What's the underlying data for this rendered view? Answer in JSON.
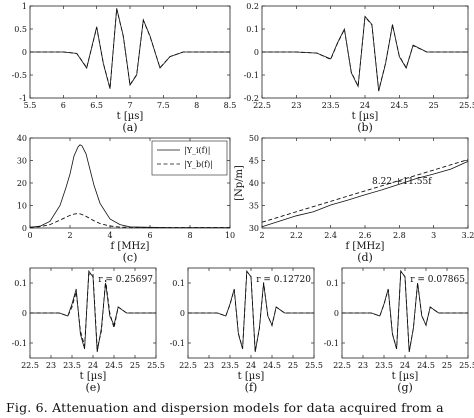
{
  "caption": "Fig. 6. Attenuation and dispersion models for data acquired from a",
  "chart_data": [
    {
      "id": "a",
      "type": "line",
      "panel_label": "(a)",
      "xlabel": "t [µs]",
      "ylabel": "",
      "xlim": [
        5.5,
        8.5
      ],
      "ylim": [
        -1,
        1
      ],
      "xticks": [
        5.5,
        6,
        6.5,
        7,
        7.5,
        8,
        8.5
      ],
      "yticks": [
        -1,
        -0.5,
        0,
        0.5,
        1
      ],
      "series": [
        {
          "style": "solid",
          "x": [
            5.5,
            6.0,
            6.2,
            6.35,
            6.5,
            6.6,
            6.7,
            6.8,
            6.9,
            7.0,
            7.1,
            7.2,
            7.3,
            7.45,
            7.6,
            7.8,
            8.0,
            8.5
          ],
          "y": [
            0,
            0,
            -0.03,
            -0.35,
            0.55,
            -0.25,
            -0.8,
            0.95,
            0.35,
            -0.72,
            -0.5,
            0.7,
            0.35,
            -0.35,
            -0.1,
            0,
            0,
            0
          ]
        },
        {
          "style": "dashed",
          "x": [
            5.5,
            6.0,
            6.2,
            6.35,
            6.5,
            6.6,
            6.7,
            6.8,
            6.9,
            7.0,
            7.1,
            7.2,
            7.3,
            7.45,
            7.6,
            7.8,
            8.0,
            8.5
          ],
          "y": [
            0,
            0,
            -0.03,
            -0.34,
            0.53,
            -0.24,
            -0.79,
            0.94,
            0.34,
            -0.71,
            -0.49,
            0.69,
            0.34,
            -0.34,
            -0.1,
            0,
            0,
            0
          ]
        }
      ]
    },
    {
      "id": "b",
      "type": "line",
      "panel_label": "(b)",
      "xlabel": "t [µs]",
      "ylabel": "",
      "xlim": [
        22.5,
        25.5
      ],
      "ylim": [
        -0.2,
        0.2
      ],
      "xticks": [
        22.5,
        23,
        23.5,
        24,
        24.5,
        25,
        25.5
      ],
      "yticks": [
        -0.2,
        -0.1,
        0,
        0.1,
        0.2
      ],
      "series": [
        {
          "style": "solid",
          "x": [
            22.5,
            23.0,
            23.3,
            23.5,
            23.6,
            23.7,
            23.8,
            23.9,
            24.0,
            24.1,
            24.2,
            24.3,
            24.4,
            24.5,
            24.6,
            24.7,
            24.9,
            25.2,
            25.5
          ],
          "y": [
            0,
            0,
            -0.005,
            -0.03,
            0.04,
            0.1,
            -0.09,
            -0.15,
            0.155,
            0.12,
            -0.17,
            -0.05,
            0.12,
            -0.02,
            -0.07,
            0.03,
            0,
            0,
            0
          ]
        },
        {
          "style": "dashed",
          "x": [
            22.5,
            23.0,
            23.3,
            23.5,
            23.6,
            23.7,
            23.8,
            23.9,
            24.0,
            24.1,
            24.2,
            24.3,
            24.4,
            24.5,
            24.6,
            24.7,
            24.9,
            25.2,
            25.5
          ],
          "y": [
            0,
            0,
            -0.005,
            -0.032,
            0.038,
            0.098,
            -0.088,
            -0.148,
            0.153,
            0.118,
            -0.168,
            -0.048,
            0.118,
            -0.018,
            -0.068,
            0.028,
            0,
            0,
            0
          ]
        }
      ]
    },
    {
      "id": "c",
      "type": "line",
      "panel_label": "(c)",
      "xlabel": "f [MHz]",
      "ylabel": "",
      "xlim": [
        0,
        10
      ],
      "ylim": [
        0,
        40
      ],
      "xticks": [
        0,
        2,
        4,
        6,
        8,
        10
      ],
      "yticks": [
        0,
        10,
        20,
        30,
        40
      ],
      "legend": {
        "position": "top-right",
        "entries": [
          "|Y_i(f)|",
          "|Y_b(f)|"
        ]
      },
      "series": [
        {
          "name": "|Y_i(f)|",
          "style": "solid",
          "x": [
            0,
            0.5,
            1.0,
            1.5,
            1.8,
            2.0,
            2.2,
            2.4,
            2.5,
            2.6,
            2.8,
            3.0,
            3.2,
            3.5,
            4.0,
            4.5,
            5,
            6,
            7,
            8,
            9,
            10
          ],
          "y": [
            0.3,
            0.8,
            3,
            10,
            18,
            24,
            32,
            36,
            37,
            36.5,
            33,
            26,
            19,
            11,
            4,
            1.5,
            0.5,
            0.3,
            0.2,
            0.2,
            0.2,
            0.2
          ]
        },
        {
          "name": "|Y_b(f)|",
          "style": "dashed",
          "x": [
            0,
            0.5,
            1.0,
            1.5,
            1.8,
            2.0,
            2.2,
            2.4,
            2.5,
            2.6,
            2.8,
            3.0,
            3.2,
            3.5,
            4.0,
            4.5,
            5,
            6,
            7,
            8,
            9,
            10
          ],
          "y": [
            0.3,
            0.6,
            1.5,
            3.5,
            4.8,
            5.6,
            6.2,
            6.4,
            6.3,
            6.0,
            5.2,
            4.2,
            3.2,
            2.0,
            0.9,
            0.4,
            0.3,
            0.2,
            0.2,
            0.2,
            0.2,
            0.2
          ]
        }
      ]
    },
    {
      "id": "d",
      "type": "line",
      "panel_label": "(d)",
      "xlabel": "f [MHz]",
      "ylabel": "[Np/m]",
      "xlim": [
        2,
        3.2
      ],
      "ylim": [
        30,
        50
      ],
      "xticks": [
        2,
        2.2,
        2.4,
        2.6,
        2.8,
        3,
        3.2
      ],
      "yticks": [
        30,
        35,
        40,
        45,
        50
      ],
      "annotation": "8.22 +11.55f",
      "series": [
        {
          "style": "solid",
          "x": [
            2.0,
            2.1,
            2.2,
            2.3,
            2.4,
            2.5,
            2.6,
            2.7,
            2.8,
            2.9,
            3.0,
            3.1,
            3.2
          ],
          "y": [
            30.3,
            31.5,
            32.7,
            33.6,
            35.1,
            36.2,
            37.4,
            38.5,
            39.7,
            41.0,
            42.0,
            43.1,
            44.8
          ]
        },
        {
          "style": "dashed",
          "x": [
            2.0,
            3.2
          ],
          "y": [
            31.3,
            45.2
          ]
        }
      ]
    },
    {
      "id": "e",
      "type": "line",
      "panel_label": "(e)",
      "xlabel": "t [µs]",
      "ylabel": "",
      "xlim": [
        22.5,
        25.5
      ],
      "ylim": [
        -0.15,
        0.15
      ],
      "xticks": [
        22.5,
        23,
        23.5,
        24,
        24.5,
        25,
        25.5
      ],
      "yticks": [
        -0.1,
        0,
        0.1
      ],
      "annotation": "r = 0.25697",
      "series": [
        {
          "style": "solid",
          "x": [
            22.5,
            23.2,
            23.4,
            23.5,
            23.6,
            23.7,
            23.8,
            23.9,
            24.0,
            24.1,
            24.2,
            24.3,
            24.4,
            24.5,
            24.6,
            24.8,
            25.0,
            25.5
          ],
          "y": [
            0,
            0,
            -0.01,
            0.03,
            0.08,
            -0.07,
            -0.12,
            0.14,
            0.12,
            -0.13,
            -0.05,
            0.1,
            -0.01,
            -0.04,
            0.02,
            0,
            0,
            0
          ]
        },
        {
          "style": "dashed",
          "x": [
            22.5,
            23.2,
            23.4,
            23.5,
            23.6,
            23.7,
            23.8,
            23.9,
            24.0,
            24.1,
            24.2,
            24.3,
            24.4,
            24.5,
            24.6,
            24.8,
            25.0,
            25.5
          ],
          "y": [
            0,
            0,
            -0.01,
            0.02,
            0.07,
            -0.06,
            -0.11,
            0.13,
            0.13,
            -0.12,
            -0.06,
            0.11,
            0.0,
            -0.05,
            0.02,
            0,
            0,
            0
          ]
        }
      ]
    },
    {
      "id": "f",
      "type": "line",
      "panel_label": "(f)",
      "xlabel": "t [µs]",
      "ylabel": "",
      "xlim": [
        22.5,
        25.5
      ],
      "ylim": [
        -0.15,
        0.15
      ],
      "xticks": [
        22.5,
        23,
        23.5,
        24,
        24.5,
        25,
        25.5
      ],
      "yticks": [
        -0.1,
        0,
        0.1
      ],
      "annotation": "r = 0.12720",
      "series": [
        {
          "style": "solid",
          "x": [
            22.5,
            23.2,
            23.4,
            23.5,
            23.6,
            23.7,
            23.8,
            23.9,
            24.0,
            24.1,
            24.2,
            24.3,
            24.4,
            24.5,
            24.6,
            24.8,
            25.0,
            25.5
          ],
          "y": [
            0,
            0,
            -0.01,
            0.03,
            0.08,
            -0.07,
            -0.12,
            0.14,
            0.12,
            -0.13,
            -0.05,
            0.1,
            -0.01,
            -0.04,
            0.02,
            0,
            0,
            0
          ]
        },
        {
          "style": "dashed",
          "x": [
            22.5,
            23.2,
            23.4,
            23.5,
            23.6,
            23.7,
            23.8,
            23.9,
            24.0,
            24.1,
            24.2,
            24.3,
            24.4,
            24.5,
            24.6,
            24.8,
            25.0,
            25.5
          ],
          "y": [
            0,
            0,
            -0.01,
            0.028,
            0.078,
            -0.068,
            -0.118,
            0.138,
            0.122,
            -0.128,
            -0.052,
            0.102,
            -0.008,
            -0.042,
            0.02,
            0,
            0,
            0
          ]
        }
      ]
    },
    {
      "id": "g",
      "type": "line",
      "panel_label": "(g)",
      "xlabel": "t [µs]",
      "ylabel": "",
      "xlim": [
        22.5,
        25.5
      ],
      "ylim": [
        -0.15,
        0.15
      ],
      "xticks": [
        22.5,
        23,
        23.5,
        24,
        24.5,
        25,
        25.5
      ],
      "yticks": [
        -0.1,
        0,
        0.1
      ],
      "annotation": "r = 0.07865",
      "series": [
        {
          "style": "solid",
          "x": [
            22.5,
            23.2,
            23.4,
            23.5,
            23.6,
            23.7,
            23.8,
            23.9,
            24.0,
            24.1,
            24.2,
            24.3,
            24.4,
            24.5,
            24.6,
            24.8,
            25.0,
            25.5
          ],
          "y": [
            0,
            0,
            -0.01,
            0.03,
            0.08,
            -0.07,
            -0.12,
            0.14,
            0.12,
            -0.13,
            -0.05,
            0.1,
            -0.01,
            -0.04,
            0.02,
            0,
            0,
            0
          ]
        },
        {
          "style": "dashed",
          "x": [
            22.5,
            23.2,
            23.4,
            23.5,
            23.6,
            23.7,
            23.8,
            23.9,
            24.0,
            24.1,
            24.2,
            24.3,
            24.4,
            24.5,
            24.6,
            24.8,
            25.0,
            25.5
          ],
          "y": [
            0,
            0,
            -0.01,
            0.029,
            0.079,
            -0.069,
            -0.119,
            0.139,
            0.121,
            -0.129,
            -0.051,
            0.101,
            -0.009,
            -0.041,
            0.02,
            0,
            0,
            0
          ]
        }
      ]
    }
  ]
}
